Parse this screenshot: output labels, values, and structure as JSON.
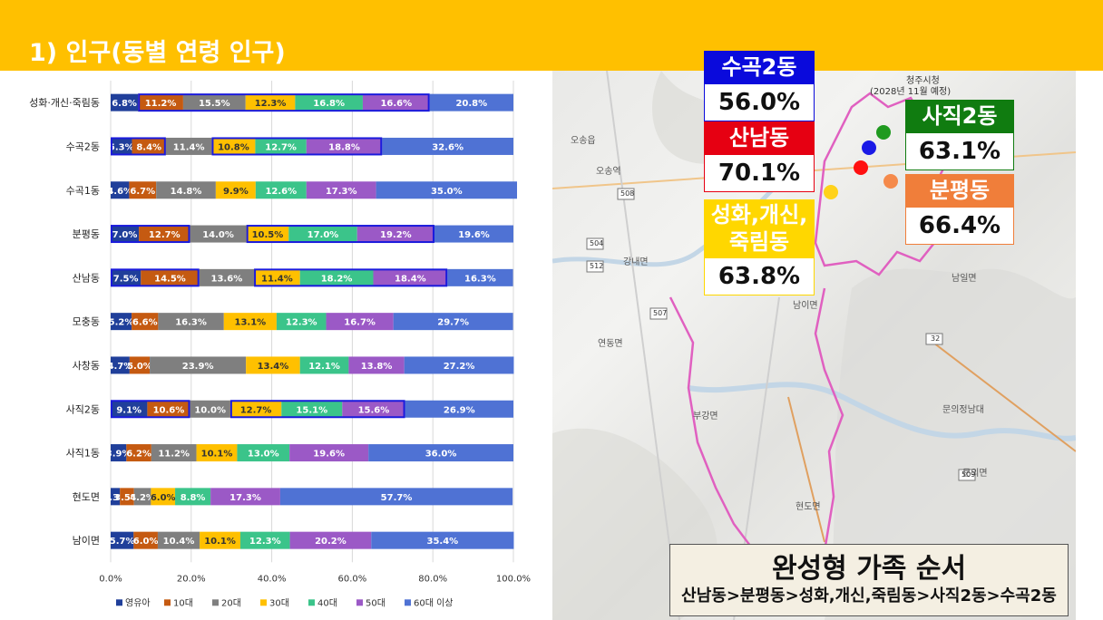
{
  "header": {
    "title": "1) 인구(동별 연령 인구)"
  },
  "chart_data": {
    "type": "bar",
    "orientation": "horizontal",
    "stacked": "percent",
    "categories": [
      "성화·개신·죽림동",
      "수곡2동",
      "수곡1동",
      "분평동",
      "산남동",
      "모충동",
      "사창동",
      "사직2동",
      "사직1동",
      "현도면",
      "남이면"
    ],
    "series": [
      {
        "name": "영유아",
        "color": "#203f9a",
        "values": [
          6.8,
          5.3,
          4.6,
          7.0,
          7.5,
          5.2,
          4.7,
          9.1,
          3.9,
          2.3,
          5.7
        ],
        "labels": [
          "6.8%",
          "5.3%",
          "4.6%",
          "7.0%",
          "7.5%",
          "5.2%",
          "4.7%",
          "9.1%",
          "3.9%",
          "2.3%",
          "5.7%"
        ]
      },
      {
        "name": "10대",
        "color": "#c55a11",
        "values": [
          11.2,
          8.4,
          6.7,
          12.7,
          14.5,
          6.6,
          5.0,
          10.6,
          6.2,
          3.5,
          6.0
        ],
        "labels": [
          "11.2%",
          "8.4%",
          "6.7%",
          "12.7%",
          "14.5%",
          "6.6%",
          "5.0%",
          "10.6%",
          "6.2%",
          "3.5%",
          "6.0%"
        ]
      },
      {
        "name": "20대",
        "color": "#7f7f7f",
        "values": [
          15.5,
          11.4,
          14.8,
          14.0,
          13.6,
          16.3,
          23.9,
          10.0,
          11.2,
          4.2,
          10.4
        ],
        "labels": [
          "15.5%",
          "11.4%",
          "14.8%",
          "14.0%",
          "13.6%",
          "16.3%",
          "23.9%",
          "10.0%",
          "11.2%",
          "4.2%",
          "10.4%"
        ]
      },
      {
        "name": "30대",
        "color": "#ffc000",
        "values": [
          12.3,
          10.8,
          9.9,
          10.5,
          11.4,
          13.1,
          13.4,
          12.7,
          10.1,
          6.0,
          10.1
        ],
        "labels": [
          "12.3%",
          "10.8%",
          "9.9%",
          "10.5%",
          "11.4%",
          "13.1%",
          "13.4%",
          "12.7%",
          "10.1%",
          "6.0%",
          "10.1%"
        ]
      },
      {
        "name": "40대",
        "color": "#3bc48a",
        "values": [
          16.8,
          12.7,
          12.6,
          17.0,
          18.2,
          12.3,
          12.1,
          15.1,
          13.0,
          8.8,
          12.3
        ],
        "labels": [
          "16.8%",
          "12.7%",
          "12.6%",
          "17.0%",
          "18.2%",
          "12.3%",
          "12.1%",
          "15.1%",
          "13.0%",
          "8.8%",
          "12.3%"
        ]
      },
      {
        "name": "50대",
        "color": "#9b59c6",
        "values": [
          16.6,
          18.8,
          17.3,
          19.2,
          18.4,
          16.7,
          13.8,
          15.6,
          19.6,
          17.3,
          20.2
        ],
        "labels": [
          "16.6%",
          "18.8%",
          "17.3%",
          "19.2%",
          "18.4%",
          "16.7%",
          "13.8%",
          "15.6%",
          "19.6%",
          "17.3%",
          "20.2%"
        ]
      },
      {
        "name": "60대 이상",
        "color": "#4f72d4",
        "values": [
          20.8,
          32.6,
          35.0,
          19.6,
          16.3,
          29.7,
          27.2,
          26.9,
          36.0,
          57.7,
          35.4
        ],
        "labels": [
          "20.8%",
          "32.6%",
          "35.0%",
          "19.6%",
          "16.3%",
          "29.7%",
          "27.2%",
          "26.9%",
          "36.0%",
          "57.7%",
          "35.4%"
        ]
      }
    ],
    "highlights": [
      {
        "category": 0,
        "series": [
          1,
          5
        ]
      },
      {
        "category": 1,
        "series": [
          0,
          1
        ]
      },
      {
        "category": 1,
        "series": [
          3,
          5
        ]
      },
      {
        "category": 3,
        "series": [
          0,
          1
        ]
      },
      {
        "category": 3,
        "series": [
          3,
          5
        ]
      },
      {
        "category": 4,
        "series": [
          0,
          1
        ]
      },
      {
        "category": 4,
        "series": [
          3,
          5
        ]
      },
      {
        "category": 7,
        "series": [
          0,
          1
        ]
      },
      {
        "category": 7,
        "series": [
          3,
          5
        ]
      }
    ],
    "xlim": [
      0,
      100
    ],
    "xticks": [
      "0.0%",
      "20.0%",
      "40.0%",
      "60.0%",
      "80.0%",
      "100.0%"
    ],
    "grid": true,
    "legend_position": "bottom"
  },
  "map": {
    "badges": [
      {
        "title": "수곡2동",
        "value": "56.0%",
        "color": "#0a0adc"
      },
      {
        "title": "산남동",
        "value": "70.1%",
        "color": "#e60012"
      },
      {
        "title": "사직2동",
        "value": "63.1%",
        "color": "#107c10"
      },
      {
        "title": "분평동",
        "value": "66.4%",
        "color": "#f07e3a"
      },
      {
        "title": "성화,개신,\n죽림동",
        "value": "63.8%",
        "color": "#ffd700"
      }
    ],
    "dots": [
      {
        "name": "green-dot",
        "color": "#1f9a1f"
      },
      {
        "name": "blue-dot",
        "color": "#1a1ae6"
      },
      {
        "name": "red-dot",
        "color": "#ff1010"
      },
      {
        "name": "orange-dot",
        "color": "#f58a4b"
      },
      {
        "name": "yellow-dot",
        "color": "#ffd21a"
      }
    ],
    "labels": {
      "city_hall": "청주시청",
      "city_hall_note": "(2028년 11월 예정)",
      "place1": "오송읍",
      "place2": "오송역",
      "place3": "강내면",
      "place4": "남일면",
      "place5": "연동면",
      "place6": "부강면",
      "place7": "현도면",
      "place8": "문의면",
      "place9": "남이면",
      "place10": "문의정남대",
      "road1": "508",
      "road2": "504",
      "road3": "512",
      "road4": "507",
      "road5": "32",
      "road6": "509"
    },
    "summary": {
      "title": "완성형 가족 순서",
      "sub": "산남동>분평동>성화,개신,죽림동>사직2동>수곡2동"
    }
  }
}
